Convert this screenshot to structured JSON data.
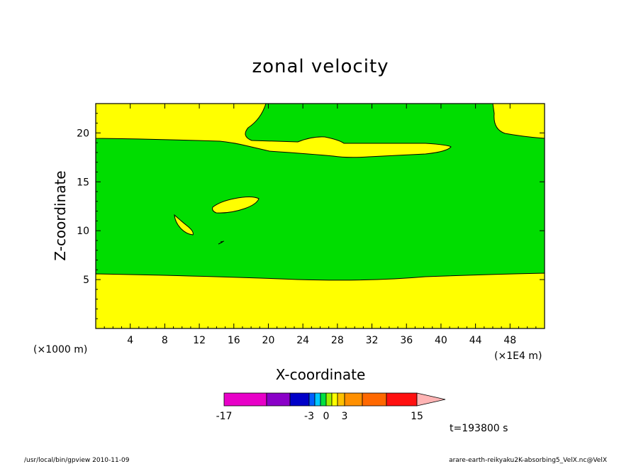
{
  "chart_data": {
    "type": "contour",
    "title": "zonal velocity",
    "xlabel": "X-coordinate",
    "ylabel": "Z-coordinate",
    "x_unit_left": "(×1000 m)",
    "x_unit_right": "(×1E4 m)",
    "xlim": [
      0,
      52
    ],
    "ylim": [
      0,
      23
    ],
    "x_ticks": [
      4,
      8,
      12,
      16,
      20,
      24,
      28,
      32,
      36,
      40,
      44,
      48
    ],
    "x_tick_labels": [
      "4",
      "8",
      "12",
      "16",
      "20",
      "24",
      "28",
      "32",
      "36",
      "40",
      "44",
      "48"
    ],
    "y_ticks": [
      5,
      10,
      15,
      20
    ],
    "y_tick_labels": [
      "5",
      "10",
      "15",
      "20"
    ],
    "colors": {
      "background_level": "#00dd00",
      "band_level": "#ffff00",
      "contour_line": "#000000",
      "frame": "#000000"
    },
    "colorbar": {
      "tick_labels": [
        "-17",
        "-3",
        "0",
        "3",
        "15"
      ],
      "tick_values": [
        -17,
        -3,
        0,
        3,
        15
      ],
      "colors": [
        "#e800c8",
        "#8a00c8",
        "#0000c8",
        "#0060ff",
        "#00c8ff",
        "#00e040",
        "#a0f000",
        "#ffff00",
        "#ffc000",
        "#ff9000",
        "#ff6800",
        "#ff1010",
        "#ff7070",
        "#ffb4b4"
      ]
    },
    "time_label": "t=193800 s"
  },
  "footer": {
    "left": "/usr/local/bin/gpview  2010-11-09",
    "right": "arare-earth-reikyaku2K-absorbing5_VelX.nc@VelX"
  }
}
